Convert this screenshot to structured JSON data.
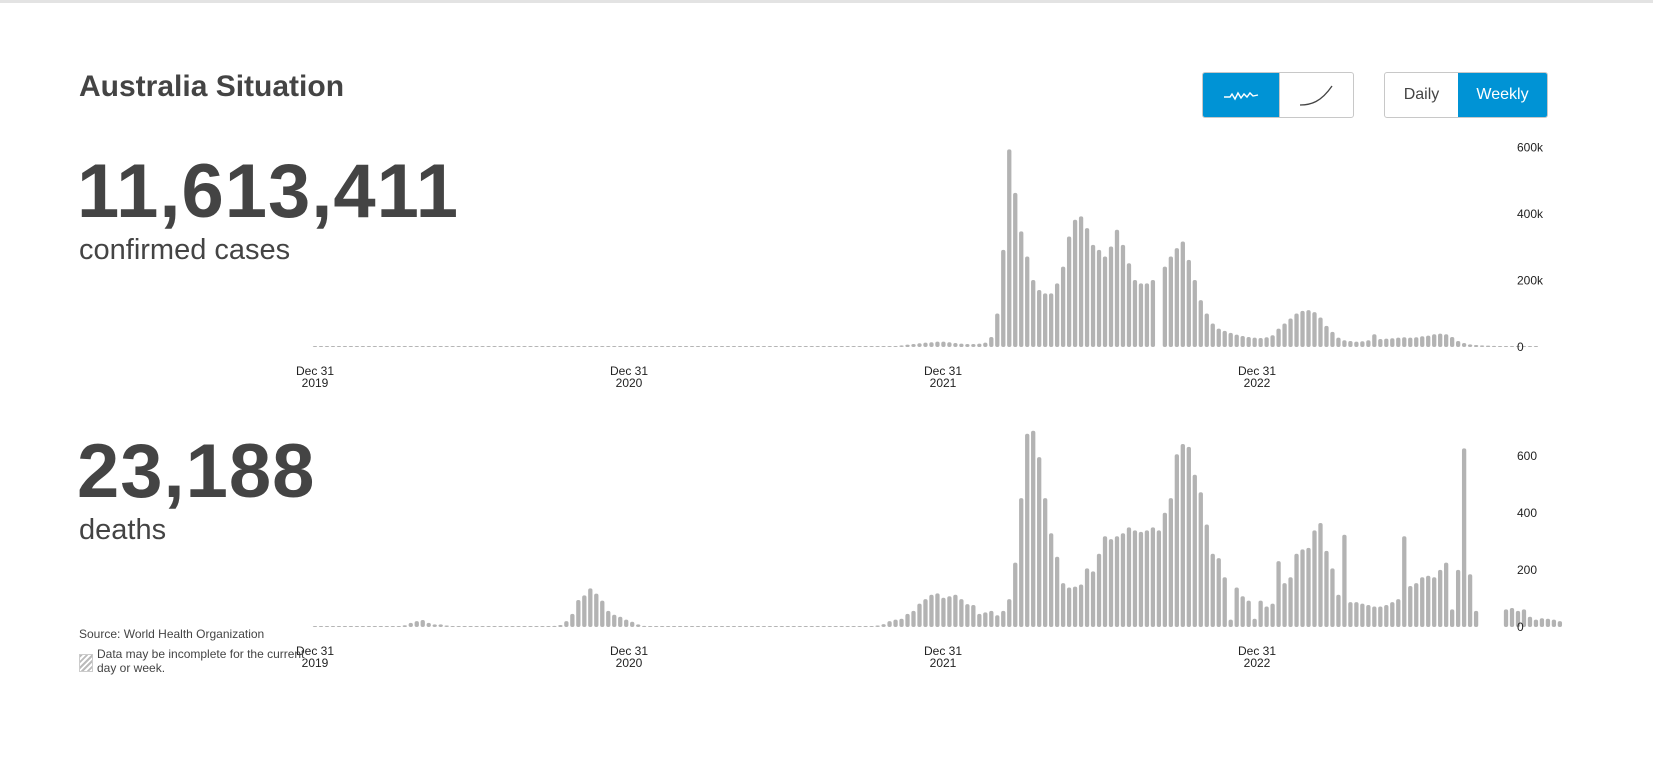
{
  "header": {
    "title": "Australia Situation"
  },
  "controls": {
    "chart_style": [
      {
        "label": "",
        "icon": "wave-line-icon",
        "active": true
      },
      {
        "label": "",
        "icon": "cumulative-curve-icon",
        "active": false
      }
    ],
    "period": [
      {
        "label": "Daily",
        "active": false
      },
      {
        "label": "Weekly",
        "active": true
      }
    ],
    "colors": {
      "accent": "#0093d5",
      "bar": "#b3b3b3"
    }
  },
  "cases": {
    "value": "11,613,411",
    "label": "confirmed cases"
  },
  "deaths": {
    "value": "23,188",
    "label": "deaths"
  },
  "footer": {
    "source_label": "Source:",
    "source_value": "World Health Organization",
    "note": "Data may be incomplete for the current day or week."
  },
  "chart_data": [
    {
      "type": "bar",
      "title": "",
      "series": [
        {
          "name": "",
          "values": [
            0,
            0,
            0,
            0,
            0,
            0,
            0,
            0,
            0,
            0,
            0,
            0,
            0,
            0,
            0,
            0,
            0,
            0,
            0,
            0,
            0,
            0,
            0,
            0,
            0,
            0,
            0,
            0,
            0,
            0,
            0,
            0,
            0,
            0,
            0,
            0,
            0,
            0,
            0,
            0,
            0,
            0,
            0,
            0,
            0,
            0,
            0,
            0,
            0,
            0,
            0,
            0,
            0,
            0,
            0,
            0,
            0,
            0,
            0,
            0,
            0,
            0,
            0,
            0,
            0,
            0,
            0,
            0,
            0,
            0,
            0,
            0,
            0,
            0,
            0,
            0,
            0,
            0,
            0,
            0,
            0,
            0,
            0,
            0,
            0,
            0,
            0,
            0,
            0,
            0,
            0,
            0,
            0,
            0,
            0,
            1000,
            2000,
            3000,
            5000,
            7000,
            9000,
            11000,
            13000,
            14000,
            16000,
            16000,
            14000,
            12000,
            10000,
            9000,
            9000,
            10000,
            13000,
            30000,
            100000,
            290000,
            590000,
            460000,
            345000,
            270000,
            200000,
            170000,
            160000,
            160000,
            190000,
            240000,
            330000,
            380000,
            390000,
            355000,
            305000,
            290000,
            270000,
            300000,
            350000,
            305000,
            250000,
            200000,
            190000,
            190000,
            200000,
            null,
            240000,
            270000,
            295000,
            315000,
            260000,
            200000,
            140000,
            100000,
            70000,
            55000,
            48000,
            42000,
            37000,
            33000,
            30000,
            28000,
            27000,
            29000,
            35000,
            55000,
            70000,
            85000,
            100000,
            108000,
            110000,
            104000,
            88000,
            63000,
            45000,
            28000,
            20000,
            18000,
            16000,
            17000,
            20000,
            38000,
            24000,
            25000,
            26000,
            28000,
            29000,
            28000,
            29000,
            32000,
            34000,
            38000,
            40000,
            38000,
            30000,
            18000,
            12000,
            8000,
            6000,
            5000,
            4000,
            3500,
            3000,
            3000,
            2500,
            2500,
            2000,
            2000,
            2000
          ]
        }
      ],
      "x_tick_labels": [
        "Dec 31 2019",
        "Dec 31 2020",
        "Dec 31 2021",
        "Dec 31 2022"
      ],
      "y_tick_labels": [
        "0",
        "200k",
        "400k",
        "600k"
      ],
      "ylim": [
        0,
        600000
      ],
      "grid": false
    },
    {
      "type": "bar",
      "title": "",
      "series": [
        {
          "name": "",
          "values": [
            0,
            0,
            0,
            0,
            0,
            0,
            0,
            0,
            0,
            0,
            0,
            0,
            2,
            2,
            3,
            6,
            14,
            20,
            24,
            14,
            9,
            9,
            5,
            2,
            2,
            0,
            0,
            0,
            0,
            0,
            0,
            0,
            0,
            0,
            0,
            0,
            0,
            0,
            0,
            0,
            4,
            7,
            20,
            45,
            92,
            108,
            132,
            114,
            90,
            55,
            42,
            35,
            25,
            18,
            9,
            4,
            2,
            0,
            0,
            0,
            0,
            0,
            0,
            0,
            0,
            0,
            0,
            0,
            0,
            0,
            0,
            0,
            0,
            0,
            0,
            0,
            0,
            0,
            0,
            0,
            0,
            0,
            0,
            0,
            0,
            0,
            0,
            2,
            2,
            0,
            0,
            0,
            0,
            3,
            5,
            10,
            20,
            25,
            28,
            45,
            55,
            80,
            95,
            110,
            115,
            100,
            105,
            110,
            95,
            78,
            75,
            45,
            50,
            55,
            40,
            55,
            95,
            220,
            440,
            660,
            670,
            580,
            440,
            320,
            240,
            150,
            135,
            138,
            145,
            200,
            190,
            250,
            310,
            300,
            310,
            320,
            340,
            330,
            325,
            330,
            340,
            330,
            390,
            440,
            590,
            625,
            615,
            520,
            460,
            350,
            250,
            235,
            170,
            25,
            135,
            105,
            90,
            28,
            90,
            70,
            80,
            225,
            150,
            170,
            250,
            265,
            270,
            330,
            355,
            260,
            200,
            110,
            315,
            85,
            85,
            80,
            75,
            70,
            70,
            75,
            85,
            95,
            310,
            140,
            150,
            170,
            175,
            170,
            195,
            220,
            60,
            195,
            610,
            180,
            55,
            null,
            null,
            null,
            null,
            60,
            65,
            55,
            60,
            35,
            25,
            30,
            28,
            25,
            20
          ]
        }
      ],
      "x_tick_labels": [
        "Dec 31 2019",
        "Dec 31 2020",
        "Dec 31 2021",
        "Dec 31 2022"
      ],
      "y_tick_labels": [
        "0",
        "200",
        "400",
        "600"
      ],
      "ylim": [
        0,
        700
      ],
      "grid": false
    }
  ]
}
